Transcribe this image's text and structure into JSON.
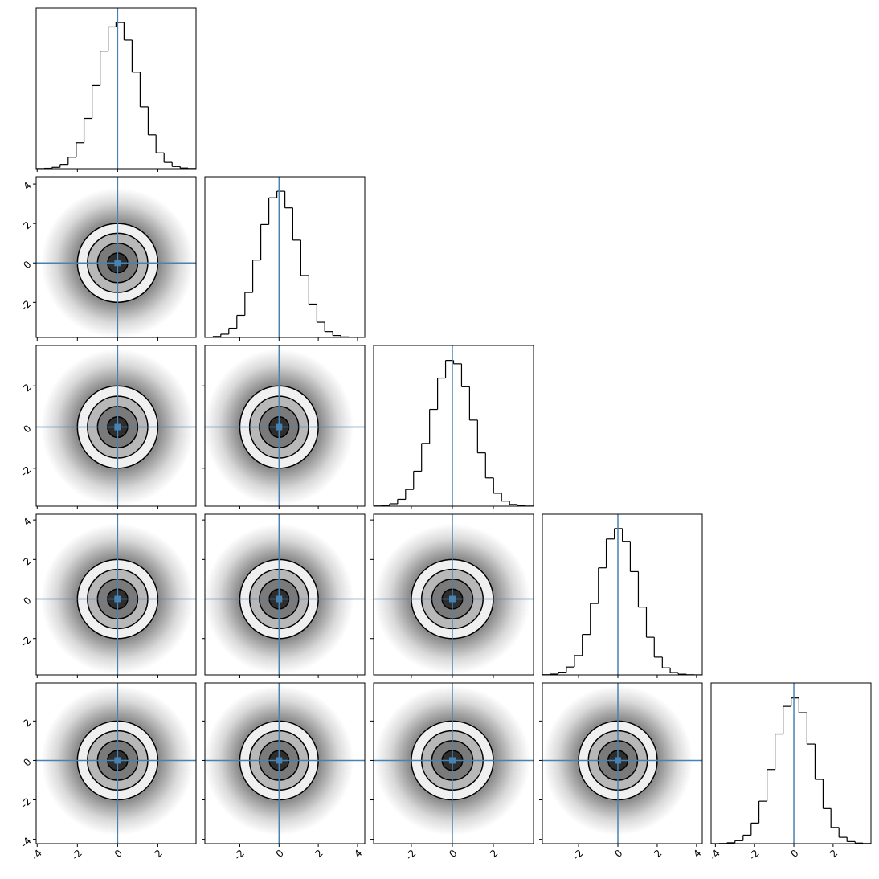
{
  "chart_data": {
    "type": "corner",
    "truths": [
      0,
      0,
      0,
      0,
      0
    ],
    "truth_color": "#4682b4",
    "hist_color": "#000000",
    "levels": [
      0.5,
      1,
      1.5,
      2
    ],
    "level_fills": [
      "#2e2e2e",
      "#7a7a7a",
      "#b8b8b8",
      "#f0f0f0"
    ],
    "parameters": [
      {
        "lim": [
          -4.05,
          3.9
        ],
        "ticks": [
          -4,
          -2,
          0,
          2
        ],
        "ylim": [
          0,
          17300
        ],
        "bins": [
          -4.05,
          -3.65,
          -3.26,
          -2.86,
          -2.46,
          -2.06,
          -1.67,
          -1.27,
          -0.87,
          -0.47,
          -0.08,
          0.32,
          0.72,
          1.12,
          1.52,
          1.91,
          2.31,
          2.71,
          3.11,
          3.5,
          3.9
        ],
        "counts": [
          10,
          41,
          149,
          462,
          1232,
          2790,
          5406,
          8960,
          12660,
          15272,
          15737,
          13845,
          10399,
          6670,
          3649,
          1709,
          680,
          233,
          68,
          17
        ]
      },
      {
        "lim": [
          -3.78,
          4.37
        ],
        "ticks": [
          -2,
          0,
          2,
          4
        ],
        "ylim": [
          0,
          17800
        ],
        "bins": [
          -3.78,
          -3.37,
          -2.97,
          -2.56,
          -2.15,
          -1.74,
          -1.34,
          -0.93,
          -0.52,
          -0.11,
          0.3,
          0.7,
          1.11,
          1.52,
          1.93,
          2.33,
          2.74,
          3.15,
          3.56,
          3.96,
          4.37
        ],
        "counts": [
          27,
          107,
          359,
          1019,
          2449,
          4976,
          8574,
          12514,
          15465,
          16190,
          14356,
          10782,
          6858,
          3696,
          1687,
          652,
          214,
          59,
          14,
          3
        ]
      },
      {
        "lim": [
          -3.84,
          3.96
        ],
        "ticks": [
          -2,
          0,
          2
        ],
        "ylim": [
          0,
          17000
        ],
        "bins": [
          -3.84,
          -3.45,
          -3.06,
          -2.67,
          -2.28,
          -1.89,
          -1.5,
          -1.11,
          -0.72,
          -0.33,
          0.06,
          0.45,
          0.84,
          1.23,
          1.62,
          2.01,
          2.4,
          2.79,
          3.18,
          3.57,
          3.96
        ],
        "counts": [
          20,
          78,
          257,
          727,
          1771,
          3701,
          6642,
          10238,
          13553,
          15417,
          15058,
          12636,
          9107,
          5639,
          2995,
          1369,
          537,
          181,
          52,
          13
        ]
      },
      {
        "lim": [
          -3.84,
          4.29
        ],
        "ticks": [
          -2,
          0,
          2,
          4
        ],
        "ylim": [
          0,
          17800
        ],
        "bins": [
          -3.84,
          -3.43,
          -3.03,
          -2.62,
          -2.21,
          -1.81,
          -1.4,
          -0.99,
          -0.59,
          -0.18,
          0.23,
          0.63,
          1.04,
          1.45,
          1.85,
          2.26,
          2.66,
          3.07,
          3.48,
          3.89,
          4.29
        ],
        "counts": [
          22,
          88,
          301,
          874,
          2146,
          4484,
          7911,
          11862,
          15061,
          16211,
          14797,
          11443,
          7508,
          4171,
          1967,
          785,
          266,
          76,
          19,
          4
        ]
      },
      {
        "lim": [
          -4.22,
          3.93
        ],
        "ticks": [
          -4,
          -2,
          0,
          2
        ],
        "ylim": [
          0,
          17900
        ],
        "bins": [
          -4.22,
          -3.81,
          -3.41,
          -3.0,
          -2.59,
          -2.18,
          -1.78,
          -1.37,
          -0.96,
          -0.55,
          -0.14,
          0.26,
          0.67,
          1.08,
          1.49,
          1.89,
          2.3,
          2.71,
          3.12,
          3.52,
          3.93
        ],
        "counts": [
          5,
          24,
          97,
          328,
          945,
          2294,
          4731,
          8260,
          12213,
          15293,
          16227,
          14584,
          11092,
          7160,
          3908,
          1805,
          707,
          235,
          66,
          16
        ]
      }
    ]
  }
}
